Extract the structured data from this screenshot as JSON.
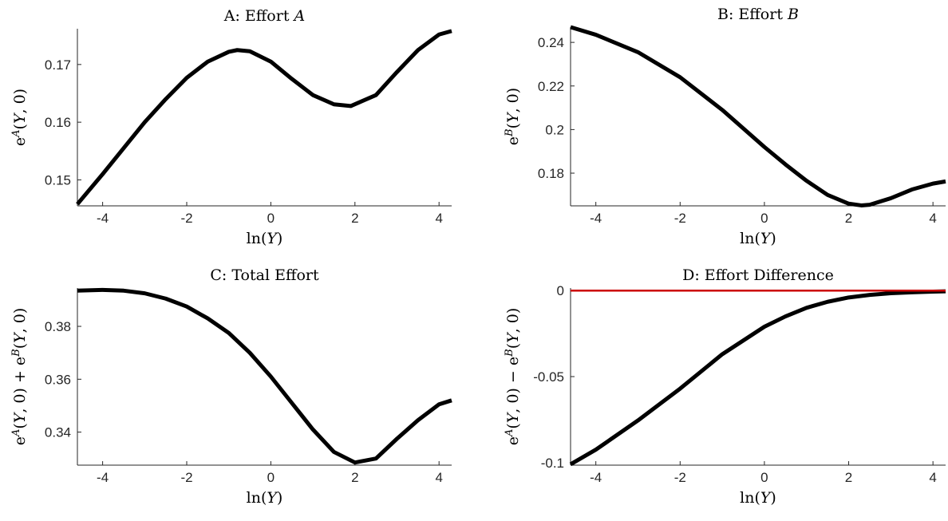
{
  "chart_data": [
    {
      "id": "A",
      "type": "line",
      "title_prefix": "A: Effort ",
      "title_var": "A",
      "xlabel_fn": "ln",
      "xlabel_var": "Y",
      "ylabel_parts": [
        [
          "e",
          "",
          "normal"
        ],
        [
          "A",
          "sup",
          "italic"
        ],
        [
          "(",
          "",
          "normal"
        ],
        [
          "Y",
          "",
          "italic"
        ],
        [
          ", 0)",
          "",
          "normal"
        ]
      ],
      "xlim": [
        -4.6,
        4.3
      ],
      "ylim": [
        0.1455,
        0.1762
      ],
      "xticks": [
        -4,
        -2,
        0,
        2,
        4
      ],
      "xtick_labels": [
        "-4",
        "-2",
        "0",
        "2",
        "4"
      ],
      "yticks": [
        0.15,
        0.16,
        0.17
      ],
      "ytick_labels": [
        "0.15",
        "0.16",
        "0.17"
      ],
      "series": [
        {
          "color": "#000000",
          "x": [
            -4.6,
            -4.0,
            -3.5,
            -3.0,
            -2.5,
            -2.0,
            -1.5,
            -1.0,
            -0.8,
            -0.5,
            0.0,
            0.5,
            1.0,
            1.5,
            1.9,
            2.5,
            3.0,
            3.5,
            4.0,
            4.3
          ],
          "y": [
            0.1458,
            0.151,
            0.1555,
            0.16,
            0.164,
            0.1677,
            0.1705,
            0.1722,
            0.1725,
            0.1723,
            0.1705,
            0.1675,
            0.1647,
            0.1631,
            0.1628,
            0.1647,
            0.1687,
            0.1725,
            0.1752,
            0.1758
          ]
        }
      ]
    },
    {
      "id": "B",
      "type": "line",
      "title_prefix": "B: Effort ",
      "title_var": "B",
      "xlabel_fn": "ln",
      "xlabel_var": "Y",
      "ylabel_parts": [
        [
          "e",
          "",
          "normal"
        ],
        [
          "B",
          "sup",
          "italic"
        ],
        [
          "(",
          "",
          "normal"
        ],
        [
          "Y",
          "",
          "italic"
        ],
        [
          ", 0)",
          "",
          "normal"
        ]
      ],
      "xlim": [
        -4.6,
        4.3
      ],
      "ylim": [
        0.165,
        0.247
      ],
      "xticks": [
        -4,
        -2,
        0,
        2,
        4
      ],
      "xtick_labels": [
        "-4",
        "-2",
        "0",
        "2",
        "4"
      ],
      "yticks": [
        0.18,
        0.2,
        0.22,
        0.24
      ],
      "ytick_labels": [
        "0.18",
        "0.2",
        "0.22",
        "0.24"
      ],
      "series": [
        {
          "color": "#000000",
          "x": [
            -4.6,
            -4.0,
            -3.0,
            -2.0,
            -1.0,
            0.0,
            0.5,
            1.0,
            1.5,
            2.0,
            2.3,
            2.5,
            3.0,
            3.5,
            4.0,
            4.3
          ],
          "y": [
            0.247,
            0.2435,
            0.2355,
            0.224,
            0.209,
            0.192,
            0.184,
            0.1765,
            0.17,
            0.166,
            0.1652,
            0.1655,
            0.1685,
            0.1725,
            0.1752,
            0.1762
          ]
        }
      ]
    },
    {
      "id": "C",
      "type": "line",
      "title_prefix": "C: Total Effort",
      "title_var": "",
      "xlabel_fn": "ln",
      "xlabel_var": "Y",
      "ylabel_parts": [
        [
          "e",
          "",
          "normal"
        ],
        [
          "A",
          "sup",
          "italic"
        ],
        [
          "(",
          "",
          "normal"
        ],
        [
          "Y",
          "",
          "italic"
        ],
        [
          ", 0) + ",
          "",
          "normal"
        ],
        [
          "e",
          "",
          "normal"
        ],
        [
          "B",
          "sup",
          "italic"
        ],
        [
          "(",
          "",
          "normal"
        ],
        [
          "Y",
          "",
          "italic"
        ],
        [
          ", 0)",
          "",
          "normal"
        ]
      ],
      "xlim": [
        -4.6,
        4.3
      ],
      "ylim": [
        0.3275,
        0.3945
      ],
      "xticks": [
        -4,
        -2,
        0,
        2,
        4
      ],
      "xtick_labels": [
        "-4",
        "-2",
        "0",
        "2",
        "4"
      ],
      "yticks": [
        0.34,
        0.36,
        0.38
      ],
      "ytick_labels": [
        "0.34",
        "0.36",
        "0.38"
      ],
      "series": [
        {
          "color": "#000000",
          "x": [
            -4.6,
            -4.0,
            -3.5,
            -3.0,
            -2.5,
            -2.0,
            -1.5,
            -1.0,
            -0.5,
            0.0,
            0.5,
            1.0,
            1.5,
            2.0,
            2.5,
            3.0,
            3.5,
            4.0,
            4.3
          ],
          "y": [
            0.3935,
            0.3938,
            0.3935,
            0.3925,
            0.3905,
            0.3875,
            0.383,
            0.3775,
            0.37,
            0.361,
            0.351,
            0.341,
            0.3325,
            0.3285,
            0.33,
            0.3375,
            0.3445,
            0.3505,
            0.352
          ]
        }
      ]
    },
    {
      "id": "D",
      "type": "line",
      "title_prefix": "D: Effort Difference",
      "title_var": "",
      "xlabel_fn": "ln",
      "xlabel_var": "Y",
      "ylabel_parts": [
        [
          "e",
          "",
          "normal"
        ],
        [
          "A",
          "sup",
          "italic"
        ],
        [
          "(",
          "",
          "normal"
        ],
        [
          "Y",
          "",
          "italic"
        ],
        [
          ", 0) − ",
          "",
          "normal"
        ],
        [
          "e",
          "",
          "normal"
        ],
        [
          "B",
          "sup",
          "italic"
        ],
        [
          "(",
          "",
          "normal"
        ],
        [
          "Y",
          "",
          "italic"
        ],
        [
          ", 0)",
          "",
          "normal"
        ]
      ],
      "xlim": [
        -4.6,
        4.3
      ],
      "ylim": [
        -0.1015,
        0.0015
      ],
      "xticks": [
        -4,
        -2,
        0,
        2,
        4
      ],
      "xtick_labels": [
        "-4",
        "-2",
        "0",
        "2",
        "4"
      ],
      "yticks": [
        -0.1,
        -0.05,
        0
      ],
      "ytick_labels": [
        "-0.1",
        "-0.05",
        "0"
      ],
      "series": [
        {
          "color": "#000000",
          "x": [
            -4.6,
            -4.0,
            -3.0,
            -2.0,
            -1.0,
            0.0,
            0.5,
            1.0,
            1.5,
            2.0,
            2.5,
            3.0,
            3.5,
            4.0,
            4.3
          ],
          "y": [
            -0.101,
            -0.0925,
            -0.0755,
            -0.057,
            -0.037,
            -0.021,
            -0.015,
            -0.01,
            -0.0065,
            -0.004,
            -0.0025,
            -0.0015,
            -0.001,
            -0.0006,
            -0.0004
          ]
        },
        {
          "color": "#cc0000",
          "x": [
            -4.6,
            4.3
          ],
          "y": [
            0,
            0
          ]
        }
      ]
    }
  ]
}
